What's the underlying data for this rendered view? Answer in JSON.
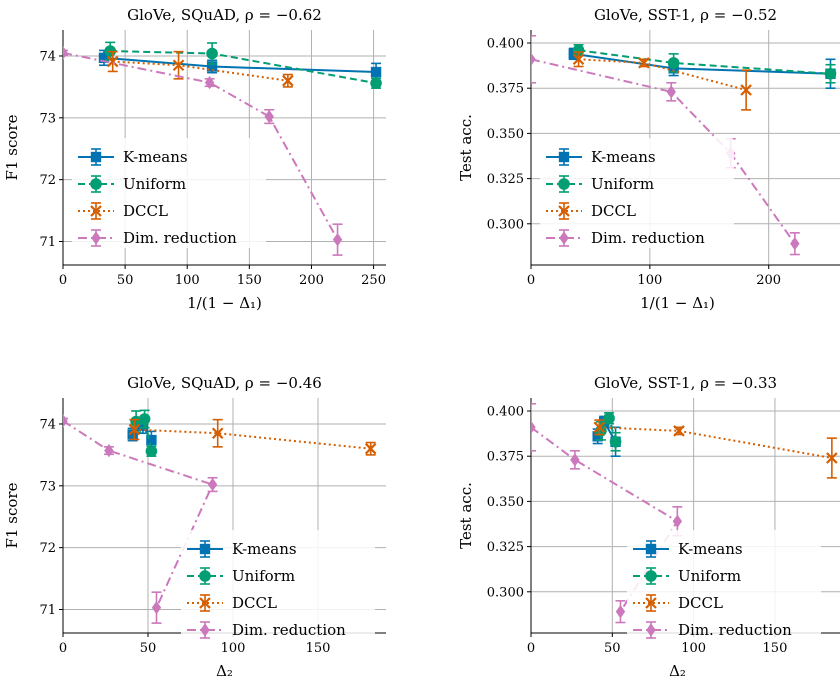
{
  "colors": {
    "kmeans": "#0173b2",
    "uniform": "#029e73",
    "dccl": "#d55e00",
    "dimred": "#cc78bc"
  },
  "chart_data": [
    {
      "type": "line",
      "title": "GloVe, SQuAD, ρ = −0.62",
      "xlabel": "1/(1 − Δ₁)",
      "ylabel": "F1 score",
      "xlim": [
        0,
        260
      ],
      "ylim": [
        70.62,
        74.42
      ],
      "xticks": [
        0,
        50,
        100,
        150,
        200,
        250
      ],
      "xticklabels": [
        "0",
        "50",
        "100",
        "150",
        "200",
        "250"
      ],
      "yticks": [
        71,
        72,
        73,
        74
      ],
      "yticklabels": [
        "71",
        "72",
        "73",
        "74"
      ],
      "grid": true,
      "legend": "lower-left",
      "series": [
        {
          "name": "K-means",
          "key": "kmeans",
          "marker": "square",
          "dash": "solid",
          "points": [
            {
              "x": 33,
              "y": 73.97,
              "err": 0.12
            },
            {
              "x": 120,
              "y": 73.83,
              "err": 0.1
            },
            {
              "x": 252,
              "y": 73.74,
              "err": 0.14
            }
          ]
        },
        {
          "name": "Uniform",
          "key": "uniform",
          "marker": "circle",
          "dash": "dashed",
          "points": [
            {
              "x": 38,
              "y": 74.08,
              "err": 0.14
            },
            {
              "x": 120,
              "y": 74.04,
              "err": 0.17
            },
            {
              "x": 252,
              "y": 73.56,
              "err": 0.08
            }
          ]
        },
        {
          "name": "DCCL",
          "key": "dccl",
          "marker": "x",
          "dash": "dotted",
          "points": [
            {
              "x": 40,
              "y": 73.91,
              "err": 0.16
            },
            {
              "x": 93,
              "y": 73.85,
              "err": 0.22
            },
            {
              "x": 181,
              "y": 73.6,
              "err": 0.1
            }
          ]
        },
        {
          "name": "Dim. reduction",
          "key": "dimred",
          "marker": "diamond",
          "dash": "dashdot",
          "points": [
            {
              "x": 0,
              "y": 74.05,
              "err": 0.04
            },
            {
              "x": 118,
              "y": 73.57,
              "err": 0.06
            },
            {
              "x": 166,
              "y": 73.02,
              "err": 0.11
            },
            {
              "x": 221,
              "y": 71.03,
              "err": 0.25
            }
          ]
        }
      ]
    },
    {
      "type": "line",
      "title": "GloVe, SST-1, ρ = −0.52",
      "xlabel": "1/(1 − Δ₁)",
      "ylabel": "Test acc.",
      "xlim": [
        0,
        260
      ],
      "ylim": [
        0.2772,
        0.4072
      ],
      "xticks": [
        0,
        100,
        200
      ],
      "xticklabels": [
        "0",
        "100",
        "200"
      ],
      "yticks": [
        0.3,
        0.325,
        0.35,
        0.375,
        0.4
      ],
      "yticklabels": [
        "0.300",
        "0.325",
        "0.350",
        "0.375",
        "0.400"
      ],
      "grid": true,
      "legend": "lower-left",
      "series": [
        {
          "name": "K-means",
          "key": "kmeans",
          "marker": "square",
          "dash": "solid",
          "points": [
            {
              "x": 36,
              "y": 0.394,
              "err": 0.003
            },
            {
              "x": 120,
              "y": 0.386,
              "err": 0.004
            },
            {
              "x": 252,
              "y": 0.383,
              "err": 0.008
            }
          ]
        },
        {
          "name": "Uniform",
          "key": "uniform",
          "marker": "circle",
          "dash": "dashed",
          "points": [
            {
              "x": 40,
              "y": 0.396,
              "err": 0.003
            },
            {
              "x": 120,
              "y": 0.389,
              "err": 0.005
            },
            {
              "x": 252,
              "y": 0.383,
              "err": 0.005
            }
          ]
        },
        {
          "name": "DCCL",
          "key": "dccl",
          "marker": "x",
          "dash": "dotted",
          "points": [
            {
              "x": 40,
              "y": 0.391,
              "err": 0.004
            },
            {
              "x": 95,
              "y": 0.389,
              "err": 0.002
            },
            {
              "x": 181,
              "y": 0.374,
              "err": 0.011
            }
          ]
        },
        {
          "name": "Dim. reduction",
          "key": "dimred",
          "marker": "diamond",
          "dash": "dashdot",
          "points": [
            {
              "x": 0,
              "y": 0.391,
              "err": 0.013
            },
            {
              "x": 118,
              "y": 0.373,
              "err": 0.005
            },
            {
              "x": 168,
              "y": 0.339,
              "err": 0.008
            },
            {
              "x": 222,
              "y": 0.289,
              "err": 0.006
            }
          ]
        }
      ]
    },
    {
      "type": "line",
      "title": "GloVe, SQuAD, ρ = −0.46",
      "xlabel": "Δ₂",
      "ylabel": "F1 score",
      "xlim": [
        0,
        190
      ],
      "ylim": [
        70.62,
        74.42
      ],
      "xticks": [
        0,
        50,
        100,
        150
      ],
      "xticklabels": [
        "0",
        "50",
        "100",
        "150"
      ],
      "yticks": [
        71,
        72,
        73,
        74
      ],
      "yticklabels": [
        "71",
        "72",
        "73",
        "74"
      ],
      "grid": true,
      "legend": "lower-right",
      "series": [
        {
          "name": "K-means",
          "key": "kmeans",
          "marker": "square",
          "dash": "solid",
          "points": [
            {
              "x": 41,
              "y": 73.83,
              "err": 0.1
            },
            {
              "x": 47,
              "y": 73.97,
              "err": 0.12
            },
            {
              "x": 52,
              "y": 73.74,
              "err": 0.14
            }
          ]
        },
        {
          "name": "Uniform",
          "key": "uniform",
          "marker": "circle",
          "dash": "dashed",
          "points": [
            {
              "x": 43,
              "y": 74.04,
              "err": 0.17
            },
            {
              "x": 48,
              "y": 74.08,
              "err": 0.14
            },
            {
              "x": 52,
              "y": 73.56,
              "err": 0.08
            }
          ]
        },
        {
          "name": "DCCL",
          "key": "dccl",
          "marker": "x",
          "dash": "dotted",
          "points": [
            {
              "x": 42,
              "y": 73.91,
              "err": 0.16
            },
            {
              "x": 91,
              "y": 73.85,
              "err": 0.22
            },
            {
              "x": 181,
              "y": 73.6,
              "err": 0.1
            }
          ]
        },
        {
          "name": "Dim. reduction",
          "key": "dimred",
          "marker": "diamond",
          "dash": "dashdot",
          "points": [
            {
              "x": 0,
              "y": 74.05,
              "err": 0.04
            },
            {
              "x": 27,
              "y": 73.57,
              "err": 0.06
            },
            {
              "x": 88,
              "y": 73.02,
              "err": 0.11
            },
            {
              "x": 55,
              "y": 71.03,
              "err": 0.25
            }
          ]
        }
      ]
    },
    {
      "type": "line",
      "title": "GloVe, SST-1, ρ = −0.33",
      "xlabel": "Δ₂",
      "ylabel": "Test acc.",
      "xlim": [
        0,
        190
      ],
      "ylim": [
        0.2772,
        0.4072
      ],
      "xticks": [
        0,
        50,
        100,
        150
      ],
      "xticklabels": [
        "0",
        "50",
        "100",
        "150"
      ],
      "yticks": [
        0.3,
        0.325,
        0.35,
        0.375,
        0.4
      ],
      "yticklabels": [
        "0.300",
        "0.325",
        "0.350",
        "0.375",
        "0.400"
      ],
      "grid": true,
      "legend": "lower-right",
      "series": [
        {
          "name": "K-means",
          "key": "kmeans",
          "marker": "square",
          "dash": "solid",
          "points": [
            {
              "x": 41,
              "y": 0.386,
              "err": 0.004
            },
            {
              "x": 45,
              "y": 0.394,
              "err": 0.003
            },
            {
              "x": 52,
              "y": 0.383,
              "err": 0.008
            }
          ]
        },
        {
          "name": "Uniform",
          "key": "uniform",
          "marker": "circle",
          "dash": "dashed",
          "points": [
            {
              "x": 43,
              "y": 0.389,
              "err": 0.005
            },
            {
              "x": 48,
              "y": 0.396,
              "err": 0.003
            },
            {
              "x": 52,
              "y": 0.383,
              "err": 0.005
            }
          ]
        },
        {
          "name": "DCCL",
          "key": "dccl",
          "marker": "x",
          "dash": "dotted",
          "points": [
            {
              "x": 42,
              "y": 0.391,
              "err": 0.004
            },
            {
              "x": 91,
              "y": 0.389,
              "err": 0.002
            },
            {
              "x": 185,
              "y": 0.374,
              "err": 0.011
            }
          ]
        },
        {
          "name": "Dim. reduction",
          "key": "dimred",
          "marker": "diamond",
          "dash": "dashdot",
          "points": [
            {
              "x": 0,
              "y": 0.391,
              "err": 0.013
            },
            {
              "x": 27,
              "y": 0.373,
              "err": 0.005
            },
            {
              "x": 90,
              "y": 0.339,
              "err": 0.008
            },
            {
              "x": 55,
              "y": 0.289,
              "err": 0.006
            }
          ]
        }
      ]
    }
  ]
}
